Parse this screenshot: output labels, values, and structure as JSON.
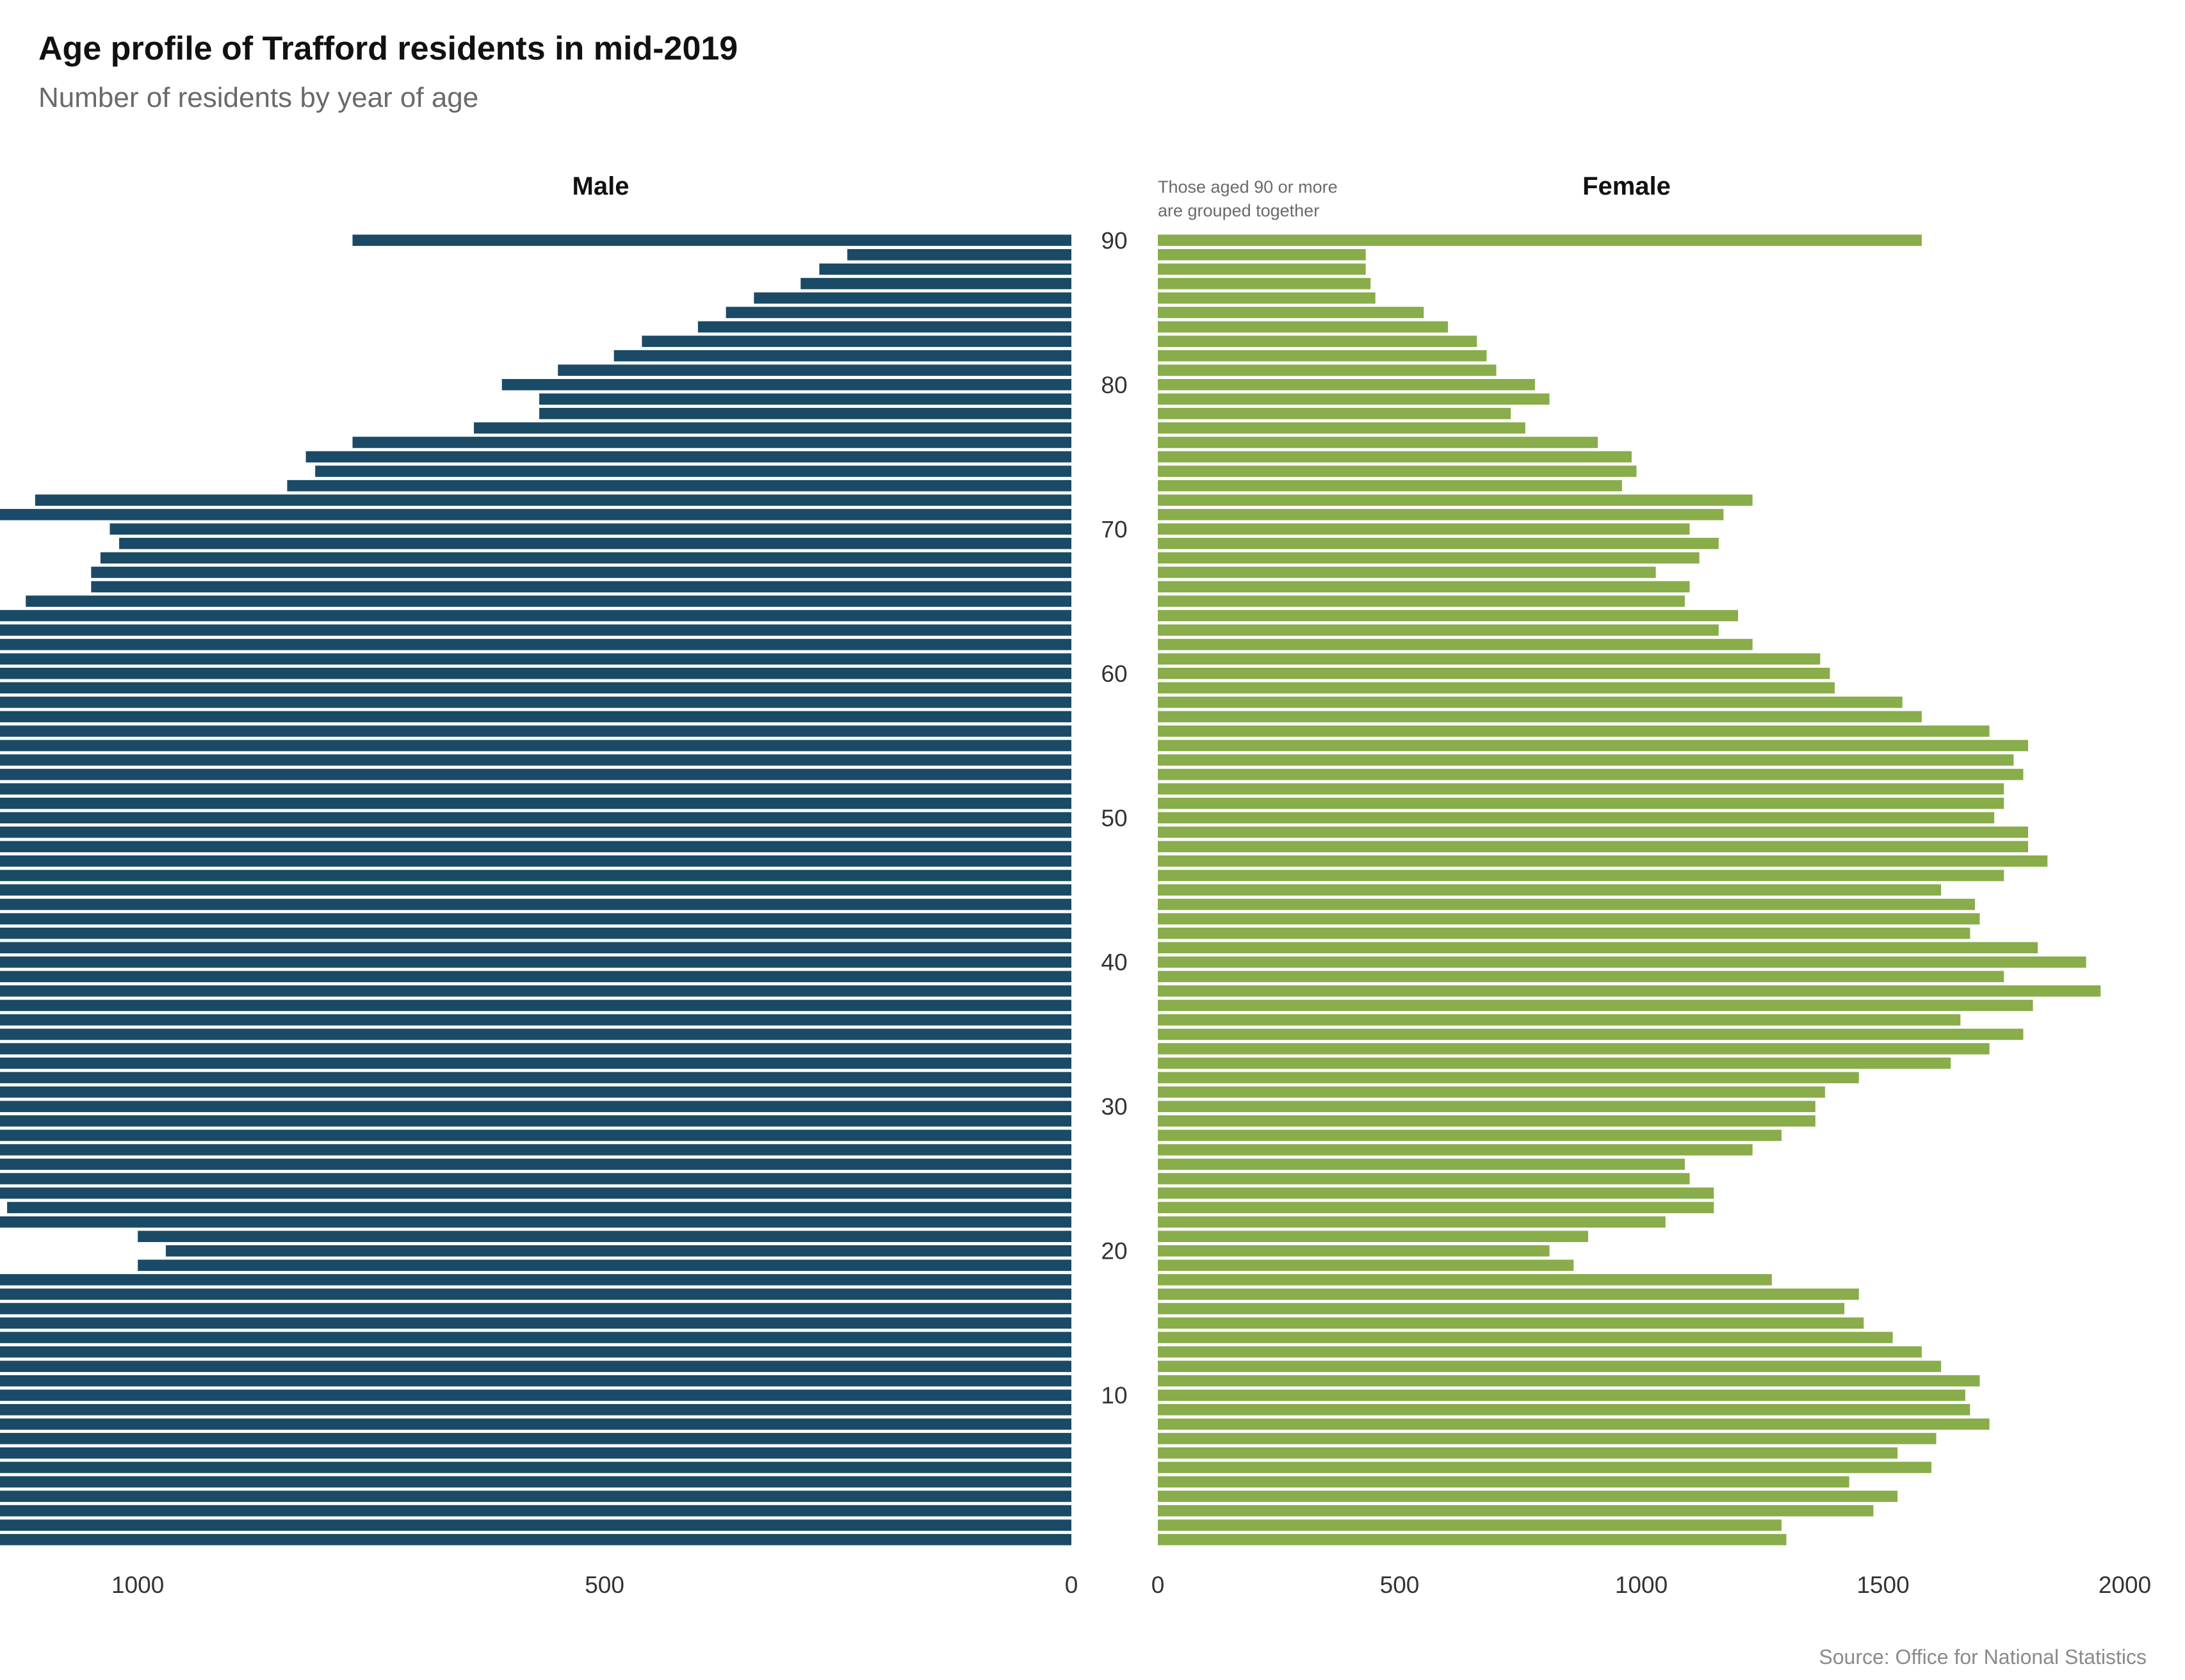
{
  "title": "Age profile of Trafford residents in mid-2019",
  "subtitle": "Number of residents by year of age",
  "source": "Source: Office for National Statistics",
  "colors": {
    "male": "#1a4a66",
    "female": "#88ad4a"
  },
  "chart_data": {
    "type": "bar",
    "orientation": "horizontal",
    "layout": "population-pyramid",
    "age_labels": [
      "10",
      "20",
      "30",
      "40",
      "50",
      "60",
      "70",
      "80",
      "90"
    ],
    "note": [
      "Those aged 90 or more",
      "are grouped together"
    ],
    "categories": [
      0,
      1,
      2,
      3,
      4,
      5,
      6,
      7,
      8,
      9,
      10,
      11,
      12,
      13,
      14,
      15,
      16,
      17,
      18,
      19,
      20,
      21,
      22,
      23,
      24,
      25,
      26,
      27,
      28,
      29,
      30,
      31,
      32,
      33,
      34,
      35,
      36,
      37,
      38,
      39,
      40,
      41,
      42,
      43,
      44,
      45,
      46,
      47,
      48,
      49,
      50,
      51,
      52,
      53,
      54,
      55,
      56,
      57,
      58,
      59,
      60,
      61,
      62,
      63,
      64,
      65,
      66,
      67,
      68,
      69,
      70,
      71,
      72,
      73,
      74,
      75,
      76,
      77,
      78,
      79,
      80,
      81,
      82,
      83,
      84,
      85,
      86,
      87,
      88,
      89,
      90
    ],
    "series": [
      {
        "name": "Male",
        "xlim": [
          0,
          1850
        ],
        "ticks": [
          "0",
          "500",
          "1000",
          "1500"
        ],
        "values": [
          1280,
          1420,
          1440,
          1570,
          1550,
          1660,
          1640,
          1840,
          1780,
          1710,
          1720,
          1830,
          1650,
          1670,
          1660,
          1500,
          1510,
          1440,
          1300,
          1000,
          970,
          1000,
          1200,
          1140,
          1300,
          1310,
          1220,
          1300,
          1350,
          1230,
          1360,
          1470,
          1320,
          1480,
          1510,
          1590,
          1560,
          1590,
          1780,
          1680,
          1740,
          1630,
          1630,
          1520,
          1670,
          1670,
          1680,
          1770,
          1730,
          1650,
          1750,
          1630,
          1570,
          1660,
          1680,
          1660,
          1680,
          1590,
          1400,
          1420,
          1380,
          1330,
          1290,
          1210,
          1170,
          1120,
          1050,
          1050,
          1040,
          1020,
          1030,
          1170,
          1110,
          840,
          810,
          820,
          770,
          640,
          570,
          570,
          610,
          550,
          490,
          460,
          400,
          370,
          340,
          290,
          270,
          240,
          770
        ]
      },
      {
        "name": "Female",
        "xlim": [
          0,
          2000
        ],
        "ticks": [
          "0",
          "500",
          "1000",
          "1500",
          "2000"
        ],
        "values": [
          1300,
          1290,
          1480,
          1530,
          1430,
          1600,
          1530,
          1610,
          1720,
          1680,
          1670,
          1700,
          1620,
          1580,
          1520,
          1460,
          1420,
          1450,
          1270,
          860,
          810,
          890,
          1050,
          1150,
          1150,
          1100,
          1090,
          1230,
          1290,
          1360,
          1360,
          1380,
          1450,
          1640,
          1720,
          1790,
          1660,
          1810,
          1950,
          1750,
          1920,
          1820,
          1680,
          1700,
          1690,
          1620,
          1750,
          1840,
          1800,
          1800,
          1730,
          1750,
          1750,
          1790,
          1770,
          1800,
          1720,
          1580,
          1540,
          1400,
          1390,
          1370,
          1230,
          1160,
          1200,
          1090,
          1100,
          1030,
          1120,
          1160,
          1100,
          1170,
          1230,
          960,
          990,
          980,
          910,
          760,
          730,
          810,
          780,
          700,
          680,
          660,
          600,
          550,
          450,
          440,
          430,
          430,
          1580
        ]
      }
    ]
  }
}
